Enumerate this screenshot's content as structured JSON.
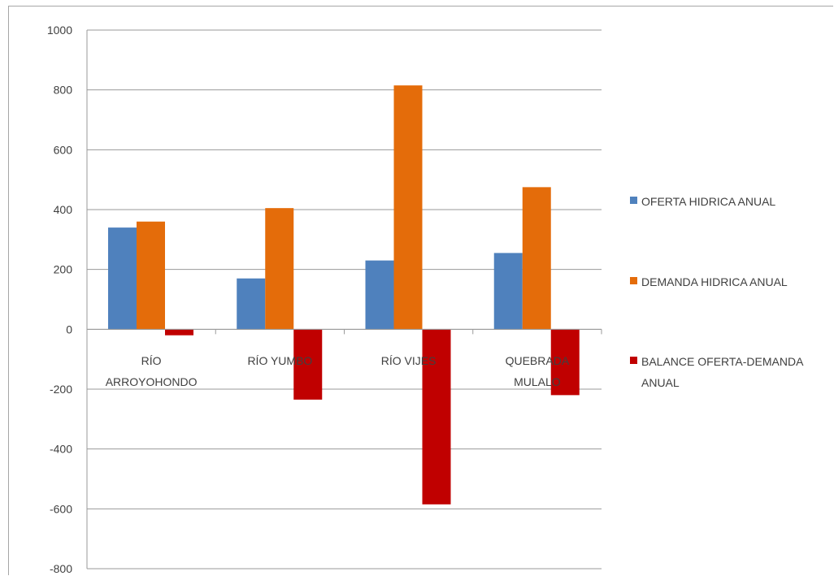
{
  "chart_data": {
    "type": "bar",
    "categories": [
      [
        "RÍO",
        "ARROYOHONDO"
      ],
      [
        "RÍO YUMBO"
      ],
      [
        "RÍO VIJES"
      ],
      [
        "QUEBRADA",
        "MULALO"
      ]
    ],
    "series": [
      {
        "name": "OFERTA HIDRICA ANUAL",
        "color": "#4f81bd",
        "values": [
          340,
          170,
          230,
          255
        ]
      },
      {
        "name": "DEMANDA HIDRICA ANUAL",
        "color": "#e46c0a",
        "values": [
          360,
          405,
          815,
          475
        ]
      },
      {
        "name": [
          "BALANCE OFERTA-DEMANDA",
          "ANUAL"
        ],
        "color": "#c00000",
        "values": [
          -20,
          -235,
          -585,
          -220
        ]
      }
    ],
    "yticks": [
      1000,
      800,
      600,
      400,
      200,
      0,
      -200,
      -400,
      -600,
      -800
    ],
    "ylim": [
      -800,
      1000
    ],
    "grid": true,
    "legend_position": "right",
    "title": "",
    "xlabel": "",
    "ylabel": ""
  }
}
